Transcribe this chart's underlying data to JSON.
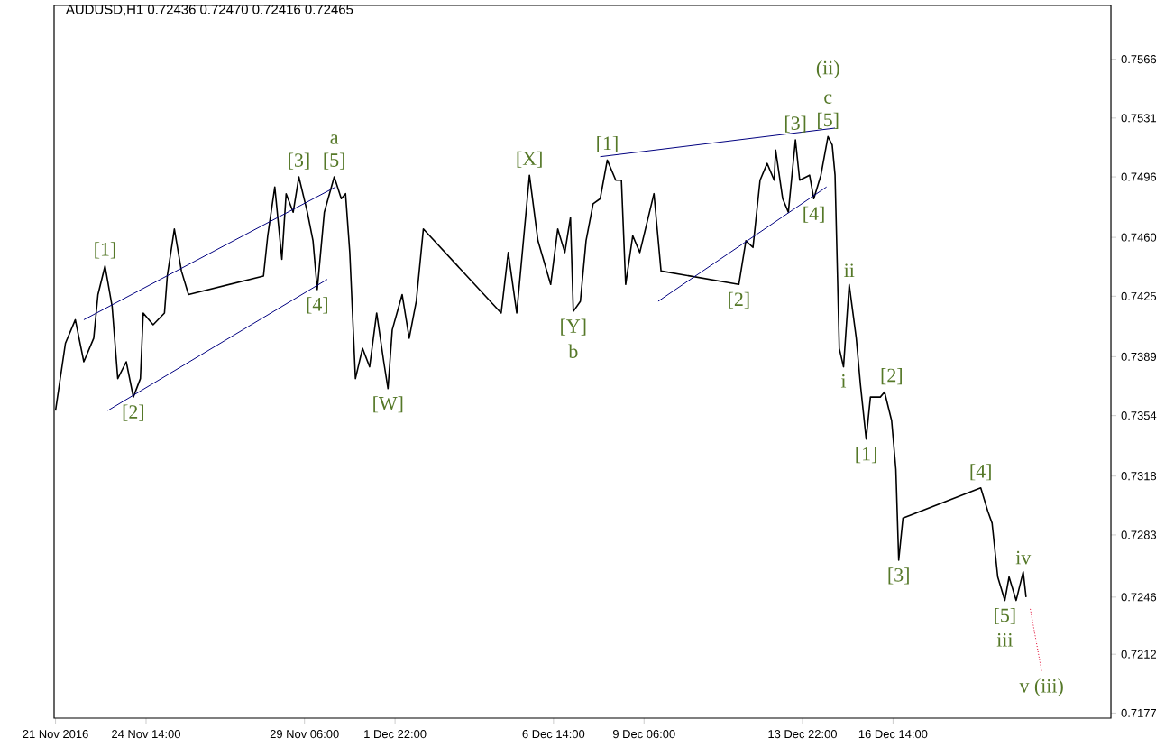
{
  "chart_data": {
    "type": "line",
    "title": "AUDUSD,H1  0.72436 0.72470 0.72416 0.72465",
    "xlim": [
      "2016-11-21T21:00",
      "2016-12-23T00:00"
    ],
    "ylim": [
      0.7174,
      0.7598
    ],
    "xticks": [
      {
        "value": "2016-11-21T22:00",
        "label": "21 Nov 2016"
      },
      {
        "value": "2016-11-24T14:00",
        "label": "24 Nov 14:00"
      },
      {
        "value": "2016-11-29T06:00",
        "label": "29 Nov 06:00"
      },
      {
        "value": "2016-12-01T22:00",
        "label": "1 Dec 22:00"
      },
      {
        "value": "2016-12-06T14:00",
        "label": "6 Dec 14:00"
      },
      {
        "value": "2016-12-09T06:00",
        "label": "9 Dec 06:00"
      },
      {
        "value": "2016-12-13T22:00",
        "label": "13 Dec 22:00"
      },
      {
        "value": "2016-12-16T14:00",
        "label": "16 Dec 14:00"
      }
    ],
    "yticks": [
      0.7566,
      0.7531,
      0.7496,
      {
        "value": 0.746,
        "label": "0.7460"
      },
      0.7425,
      0.7389,
      0.7354,
      0.7318,
      0.7283,
      0.7246,
      0.7212,
      0.7177
    ],
    "series": [
      {
        "color": "#000000",
        "x": [
          "2016-11-21T22:00",
          "2016-11-22T05:00",
          "2016-11-22T12:00",
          "2016-11-22T18:00",
          "2016-11-23T01:00",
          "2016-11-23T04:00",
          "2016-11-23T09:00",
          "2016-11-23T14:00",
          "2016-11-23T18:00",
          "2016-11-24T00:00",
          "2016-11-24T05:00",
          "2016-11-24T10:00",
          "2016-11-24T12:00",
          "2016-11-24T19:00",
          "2016-11-25T03:00",
          "2016-11-25T05:00",
          "2016-11-25T10:00",
          "2016-11-25T15:00",
          "2016-11-25T20:00",
          "2016-11-28T01:00",
          "2016-11-28T04:00",
          "2016-11-28T09:00",
          "2016-11-28T14:00",
          "2016-11-28T17:00",
          "2016-11-28T22:00",
          "2016-11-29T02:00",
          "2016-11-29T08:00",
          "2016-11-29T12:00",
          "2016-11-29T15:00",
          "2016-11-29T20:00",
          "2016-11-30T03:00",
          "2016-11-30T08:00",
          "2016-11-30T11:00",
          "2016-11-30T14:00",
          "2016-11-30T18:00",
          "2016-11-30T23:00",
          "2016-12-01T04:00",
          "2016-12-01T09:00",
          "2016-12-01T14:00",
          "2016-12-01T17:00",
          "2016-12-01T20:00",
          "2016-12-02T03:00",
          "2016-12-02T08:00",
          "2016-12-02T13:00",
          "2016-12-02T18:00",
          "2016-12-05T01:00",
          "2016-12-05T06:00",
          "2016-12-05T12:00",
          "2016-12-05T21:00",
          "2016-12-06T03:00",
          "2016-12-06T12:00",
          "2016-12-06T17:00",
          "2016-12-06T22:00",
          "2016-12-07T02:00",
          "2016-12-07T04:00",
          "2016-12-07T09:00",
          "2016-12-07T13:00",
          "2016-12-07T18:00",
          "2016-12-07T23:00",
          "2016-12-08T04:00",
          "2016-12-08T10:00",
          "2016-12-08T14:00",
          "2016-12-08T17:00",
          "2016-12-08T22:00",
          "2016-12-09T03:00",
          "2016-12-09T13:00",
          "2016-12-09T18:00",
          "2016-12-12T01:00",
          "2016-12-12T06:00",
          "2016-12-12T11:00",
          "2016-12-12T16:00",
          "2016-12-12T21:00",
          "2016-12-13T02:00",
          "2016-12-13T03:00",
          "2016-12-13T08:00",
          "2016-12-13T12:00",
          "2016-12-13T17:00",
          "2016-12-13T20:00",
          "2016-12-14T03:00",
          "2016-12-14T06:00",
          "2016-12-14T11:00",
          "2016-12-14T16:00",
          "2016-12-14T19:00",
          "2016-12-14T21:00",
          "2016-12-15T00:00",
          "2016-12-15T03:00",
          "2016-12-15T07:00",
          "2016-12-15T12:00",
          "2016-12-15T15:00",
          "2016-12-15T19:00",
          "2016-12-15T22:00",
          "2016-12-16T05:00",
          "2016-12-16T08:00",
          "2016-12-16T13:00",
          "2016-12-16T16:00",
          "2016-12-16T18:00",
          "2016-12-16T21:00",
          "2016-12-19T04:00",
          "2016-12-19T09:00",
          "2016-12-19T12:00",
          "2016-12-19T16:00",
          "2016-12-19T21:00",
          "2016-12-20T00:00",
          "2016-12-20T05:00",
          "2016-12-20T10:00",
          "2016-12-20T12:00"
        ],
        "values": [
          0.7357,
          0.7397,
          0.7411,
          0.7386,
          0.74,
          0.7426,
          0.7443,
          0.7419,
          0.7376,
          0.7386,
          0.7365,
          0.7376,
          0.7415,
          0.7408,
          0.7415,
          0.7437,
          0.7465,
          0.744,
          0.7426,
          0.7437,
          0.7461,
          0.749,
          0.7447,
          0.7486,
          0.7475,
          0.7496,
          0.7475,
          0.7458,
          0.7429,
          0.7475,
          0.7496,
          0.7483,
          0.7486,
          0.7451,
          0.7376,
          0.7394,
          0.7383,
          0.7415,
          0.7386,
          0.737,
          0.7405,
          0.7426,
          0.74,
          0.7422,
          0.7465,
          0.7415,
          0.7451,
          0.7415,
          0.7497,
          0.7458,
          0.7432,
          0.7465,
          0.7451,
          0.7472,
          0.7416,
          0.7422,
          0.7458,
          0.748,
          0.7483,
          0.7506,
          0.7494,
          0.7494,
          0.7432,
          0.7461,
          0.7451,
          0.7486,
          0.744,
          0.7432,
          0.7458,
          0.7454,
          0.7494,
          0.7504,
          0.7494,
          0.7512,
          0.7483,
          0.7475,
          0.7518,
          0.7494,
          0.7497,
          0.7483,
          0.7497,
          0.752,
          0.7515,
          0.7497,
          0.7394,
          0.7383,
          0.7432,
          0.74,
          0.7372,
          0.734,
          0.7365,
          0.7365,
          0.7368,
          0.7351,
          0.7322,
          0.7268,
          0.7293,
          0.7311,
          0.7297,
          0.729,
          0.7258,
          0.7244,
          0.7258,
          0.7244,
          0.7261,
          0.7246
        ]
      },
      {
        "color": "#00007f",
        "x": [
          "2016-11-22T18:00",
          "2016-11-30T04:00"
        ],
        "values": [
          0.7411,
          0.749
        ]
      },
      {
        "color": "#00007f",
        "x": [
          "2016-11-23T11:00",
          "2016-11-29T22:00"
        ],
        "values": [
          0.7357,
          0.7435
        ]
      },
      {
        "color": "#00007f",
        "x": [
          "2016-12-07T23:00",
          "2016-12-14T21:00"
        ],
        "values": [
          0.7508,
          0.7525
        ]
      },
      {
        "color": "#00007f",
        "x": [
          "2016-12-09T16:00",
          "2016-12-14T15:00"
        ],
        "values": [
          0.7422,
          0.749
        ]
      },
      {
        "color": "#e0002a",
        "line_style": "dotted",
        "x": [
          "2016-12-20T15:00",
          "2016-12-20T23:00"
        ],
        "values": [
          0.7239,
          0.7202
        ]
      }
    ],
    "annotations": [
      {
        "text": "[1]",
        "x": "2016-11-23T09:00",
        "y": 0.7443
      },
      {
        "text": "[2]",
        "x": "2016-11-24T05:00",
        "y": 0.7365
      },
      {
        "text": "[3]",
        "x": "2016-11-29T02:00",
        "y": 0.7496
      },
      {
        "text": "[4]",
        "x": "2016-11-29T15:00",
        "y": 0.7429
      },
      {
        "text": "[5]",
        "x": "2016-11-30T03:00",
        "y": 0.7496
      },
      {
        "text": "a",
        "x": "2016-11-30T03:00",
        "y": 0.7496
      },
      {
        "text": "[W]",
        "x": "2016-12-01T17:00",
        "y": 0.737
      },
      {
        "text": "[X]",
        "x": "2016-12-05T21:00",
        "y": 0.7497
      },
      {
        "text": "[Y]",
        "x": "2016-12-07T04:00",
        "y": 0.7416
      },
      {
        "text": "b",
        "x": "2016-12-07T04:00",
        "y": 0.7416
      },
      {
        "text": "[1]",
        "x": "2016-12-08T04:00",
        "y": 0.7506
      },
      {
        "text": "[2]",
        "x": "2016-12-12T01:00",
        "y": 0.7432
      },
      {
        "text": "[3]",
        "x": "2016-12-13T17:00",
        "y": 0.7518
      },
      {
        "text": "[4]",
        "x": "2016-12-14T06:00",
        "y": 0.7483
      },
      {
        "text": "[5]",
        "x": "2016-12-14T16:00",
        "y": 0.752
      },
      {
        "text": "c",
        "x": "2016-12-14T16:00",
        "y": 0.752
      },
      {
        "text": "(ii)",
        "x": "2016-12-14T16:00",
        "y": 0.752
      },
      {
        "text": "i",
        "x": "2016-12-15T03:00",
        "y": 0.7383
      },
      {
        "text": "ii",
        "x": "2016-12-15T07:00",
        "y": 0.7432
      },
      {
        "text": "[1]",
        "x": "2016-12-15T19:00",
        "y": 0.734
      },
      {
        "text": "[2]",
        "x": "2016-12-16T13:00",
        "y": 0.7368
      },
      {
        "text": "[3]",
        "x": "2016-12-16T18:00",
        "y": 0.7268
      },
      {
        "text": "[4]",
        "x": "2016-12-19T04:00",
        "y": 0.7311
      },
      {
        "text": "[5]",
        "x": "2016-12-19T21:00",
        "y": 0.7244
      },
      {
        "text": "iii",
        "x": "2016-12-19T21:00",
        "y": 0.7244
      },
      {
        "text": "iv",
        "x": "2016-12-20T10:00",
        "y": 0.7261
      },
      {
        "text": "v (iii)",
        "x": "2016-12-20T23:00",
        "y": 0.7202
      }
    ]
  }
}
